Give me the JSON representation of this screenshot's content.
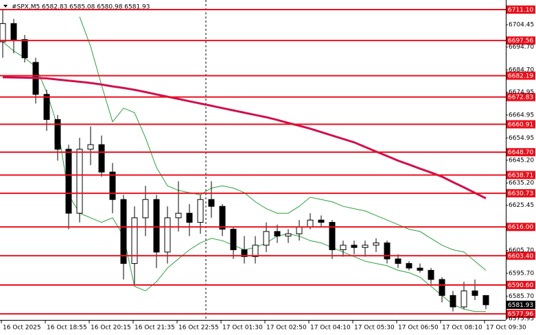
{
  "chart_data": {
    "type": "candlestick",
    "title": "#SPX,M5  6582.83 6585.08 6580.98 6581.93",
    "categories": [
      "16 Oct 2025",
      null,
      null,
      null,
      "16 Oct 18:55",
      null,
      null,
      null,
      "16 Oct 20:15",
      null,
      null,
      null,
      "16 Oct 21:35",
      null,
      null,
      null,
      "16 Oct 22:55",
      null,
      null,
      null,
      "17 Oct 01:30",
      null,
      null,
      null,
      "17 Oct 02:50",
      null,
      null,
      null,
      "17 Oct 04:10",
      null,
      null,
      null,
      "17 Oct 05:30",
      null,
      null,
      null,
      "17 Oct 06:50",
      null,
      null,
      null,
      "17 Oct 08:10",
      null,
      null,
      null,
      "17 Oct 09:30"
    ],
    "open": [
      6697,
      6705,
      6698,
      6688,
      6674,
      6663,
      6650,
      6622,
      6650,
      6652,
      6640,
      6628,
      6600,
      6620,
      6628,
      6605,
      6620,
      6622,
      6618,
      6628,
      6625,
      6615,
      6606,
      6603,
      6608,
      6614,
      6612,
      6613,
      6616,
      6619,
      6618,
      6606,
      6608,
      6607,
      6608,
      6609,
      6602,
      6600,
      6598,
      6597,
      6593,
      6586,
      6581,
      6588,
      6586
    ],
    "high": [
      6711,
      6707,
      6700,
      6690,
      6676,
      6665,
      6652,
      6655,
      6660,
      6656,
      6644,
      6630,
      6625,
      6634,
      6630,
      6625,
      6636,
      6626,
      6630,
      6636,
      6626,
      6616,
      6612,
      6612,
      6618,
      6617,
      6615,
      6619,
      6622,
      6621,
      6619,
      6610,
      6610,
      6610,
      6611,
      6610,
      6604,
      6601,
      6600,
      6598,
      6594,
      6588,
      6592,
      6593,
      6586
    ],
    "low": [
      6690,
      6692,
      6688,
      6670,
      6658,
      6645,
      6615,
      6618,
      6643,
      6638,
      6622,
      6593,
      6591,
      6612,
      6598,
      6600,
      6614,
      6612,
      6613,
      6620,
      6612,
      6602,
      6600,
      6600,
      6605,
      6609,
      6609,
      6610,
      6615,
      6616,
      6602,
      6603,
      6604,
      6603,
      6605,
      6600,
      6598,
      6597,
      6596,
      6591,
      6583,
      6579,
      6580,
      6584,
      6580
    ],
    "close": [
      6705,
      6698,
      6690,
      6674,
      6663,
      6650,
      6622,
      6650,
      6652,
      6640,
      6628,
      6600,
      6620,
      6628,
      6605,
      6620,
      6622,
      6618,
      6628,
      6625,
      6615,
      6606,
      6603,
      6608,
      6614,
      6612,
      6613,
      6616,
      6619,
      6618,
      6606,
      6608,
      6607,
      6608,
      6609,
      6602,
      6600,
      6598,
      6597,
      6593,
      6586,
      6581,
      6588,
      6586,
      6581.93
    ],
    "ma": {
      "color": "#d0104c",
      "values": [
        6681.5,
        6681.4,
        6681.3,
        6681.2,
        6681,
        6680.5,
        6680,
        6679.5,
        6679,
        6678.3,
        6677.5,
        6676.8,
        6676,
        6675,
        6674,
        6673,
        6672,
        6671,
        6670,
        6669,
        6668,
        6667,
        6666,
        6665,
        6664,
        6662.8,
        6661.5,
        6660.3,
        6659,
        6657.5,
        6656,
        6654.5,
        6653,
        6651,
        6649,
        6647,
        6645,
        6643.3,
        6641.5,
        6639.8,
        6638,
        6635.6,
        6633.3,
        6630.9,
        6628.5
      ]
    },
    "bands": {
      "color": "#2e9e3e",
      "upper": [
        null,
        null,
        null,
        null,
        null,
        null,
        null,
        6708,
        6695,
        6678,
        6662,
        6668,
        6666,
        6655,
        6642,
        6634,
        6632,
        6631,
        6630,
        6633,
        6634,
        6633,
        6631,
        6627,
        6624,
        6622,
        6622,
        6625,
        6629,
        6628,
        6627,
        6625,
        6624,
        6623,
        6621,
        6619,
        6617,
        6615,
        6614,
        6611,
        6608,
        6606,
        6605,
        6601,
        6597
      ],
      "lower": [
        6697,
        6693,
        6690,
        6686,
        6675,
        6660,
        6630,
        6622,
        6620,
        6618,
        6620,
        6612,
        6590,
        6588,
        6592,
        6598,
        6602,
        6606,
        6609,
        6611,
        6610,
        6608,
        6606,
        6607,
        6609,
        6612,
        6613,
        6612,
        6610,
        6609,
        6607,
        6605,
        6603,
        6601,
        6600,
        6599,
        6597,
        6596,
        6594,
        6590,
        6586,
        6582,
        6580,
        6579,
        6579
      ]
    },
    "levels": {
      "color": "#e8101c",
      "values": [
        {
          "value": 6711.1,
          "label": "6711.10"
        },
        6697.56,
        6682.19,
        6672.83,
        6660.91,
        {
          "value": 6648.7,
          "label": "6648.70"
        },
        6638.71,
        6630.73,
        {
          "value": 6616,
          "label": "6616.00"
        },
        {
          "value": 6603.4,
          "label": "6603.40"
        },
        {
          "value": 6590.6,
          "label": "6590.60"
        },
        6577.96
      ]
    },
    "ylim": [
      6575.3,
      6715.3
    ],
    "yticks": [
      6704.45,
      {
        "value": 6694.7,
        "label": "6694.70"
      },
      {
        "value": 6684.7,
        "label": "6684.70"
      },
      6674.95,
      6664.95,
      6654.95,
      {
        "value": 6645.2,
        "label": "6645.20"
      },
      {
        "value": 6635.2,
        "label": "6635.20"
      },
      6625.45,
      {
        "value": 6605.7,
        "label": "6605.70"
      },
      {
        "value": 6595.7,
        "label": "6595.70"
      },
      {
        "value": 6585.7,
        "label": "6585.70"
      },
      6575.95
    ]
  }
}
